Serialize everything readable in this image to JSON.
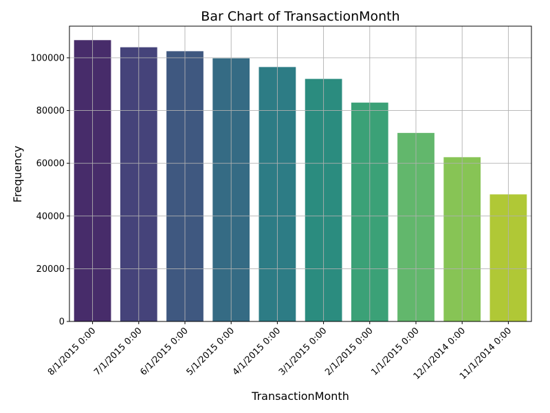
{
  "chart_data": {
    "type": "bar",
    "title": "Bar Chart of TransactionMonth",
    "xlabel": "TransactionMonth",
    "ylabel": "Frequency",
    "categories": [
      "8/1/2015 0:00",
      "7/1/2015 0:00",
      "6/1/2015 0:00",
      "5/1/2015 0:00",
      "4/1/2015 0:00",
      "3/1/2015 0:00",
      "2/1/2015 0:00",
      "1/1/2015 0:00",
      "12/1/2014 0:00",
      "11/1/2014 0:00"
    ],
    "values": [
      106700,
      104000,
      102500,
      99800,
      96500,
      92000,
      83000,
      71500,
      62300,
      48200
    ],
    "colors": [
      "#472c6a",
      "#45437a",
      "#3f5880",
      "#356b84",
      "#2d7c85",
      "#2b8c7f",
      "#3ba177",
      "#62b76c",
      "#87c455",
      "#b0c836"
    ],
    "ylim": [
      0,
      112000
    ],
    "yticks": [
      0,
      20000,
      40000,
      60000,
      80000,
      100000
    ],
    "grid": true,
    "legend": "none"
  }
}
